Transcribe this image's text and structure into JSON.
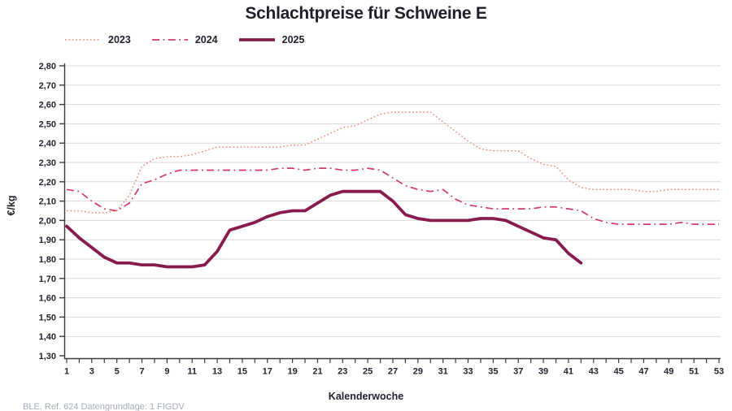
{
  "title": "Schlachtpreise für Schweine E",
  "footer": "BLE, Ref. 624 Datengrundlage: 1 FIGDV",
  "colors": {
    "grid": "#d9d9d9",
    "axis": "#3a3a3a",
    "text": "#23232f",
    "footer": "#a7acb8"
  },
  "chart_data": {
    "type": "line",
    "title": "Schlachtpreise für Schweine E",
    "xlabel": "Kalenderwoche",
    "ylabel": "€/kg",
    "xlim": [
      1,
      53
    ],
    "ylim": [
      1.3,
      2.8
    ],
    "ytick_step": 0.1,
    "xtick_labels": [
      1,
      3,
      5,
      7,
      9,
      11,
      13,
      15,
      17,
      19,
      21,
      23,
      25,
      27,
      29,
      31,
      33,
      35,
      37,
      39,
      41,
      43,
      45,
      47,
      49,
      51,
      53
    ],
    "grid": "horizontal",
    "legend_position": "top-left",
    "decimal_separator": ",",
    "series": [
      {
        "name": "2023",
        "color": "#ee8a7a",
        "dash": "dotted",
        "width": 1.4,
        "start_week": 1,
        "values": [
          2.05,
          2.05,
          2.04,
          2.04,
          2.05,
          2.13,
          2.28,
          2.32,
          2.33,
          2.33,
          2.34,
          2.36,
          2.38,
          2.38,
          2.38,
          2.38,
          2.38,
          2.38,
          2.39,
          2.39,
          2.42,
          2.45,
          2.48,
          2.49,
          2.52,
          2.55,
          2.56,
          2.56,
          2.56,
          2.56,
          2.51,
          2.46,
          2.41,
          2.37,
          2.36,
          2.36,
          2.36,
          2.32,
          2.29,
          2.28,
          2.21,
          2.17,
          2.16,
          2.16,
          2.16,
          2.16,
          2.15,
          2.15,
          2.16,
          2.16,
          2.16,
          2.16,
          2.16
        ]
      },
      {
        "name": "2024",
        "color": "#d2386c",
        "dash": "dashdot",
        "width": 1.7,
        "start_week": 1,
        "values": [
          2.16,
          2.15,
          2.1,
          2.06,
          2.05,
          2.09,
          2.19,
          2.21,
          2.24,
          2.26,
          2.26,
          2.26,
          2.26,
          2.26,
          2.26,
          2.26,
          2.26,
          2.27,
          2.27,
          2.26,
          2.27,
          2.27,
          2.26,
          2.26,
          2.27,
          2.26,
          2.22,
          2.18,
          2.16,
          2.15,
          2.16,
          2.11,
          2.08,
          2.07,
          2.06,
          2.06,
          2.06,
          2.06,
          2.07,
          2.07,
          2.06,
          2.05,
          2.01,
          1.99,
          1.98,
          1.98,
          1.98,
          1.98,
          1.98,
          1.99,
          1.98,
          1.98,
          1.98
        ]
      },
      {
        "name": "2025",
        "color": "#871b4e",
        "dash": "solid",
        "width": 3.8,
        "start_week": 1,
        "values": [
          1.97,
          1.91,
          1.86,
          1.81,
          1.78,
          1.78,
          1.77,
          1.77,
          1.76,
          1.76,
          1.76,
          1.77,
          1.84,
          1.95,
          1.97,
          1.99,
          2.02,
          2.04,
          2.05,
          2.05,
          2.09,
          2.13,
          2.15,
          2.15,
          2.15,
          2.15,
          2.1,
          2.03,
          2.01,
          2.0,
          2.0,
          2.0,
          2.0,
          2.01,
          2.01,
          2.0,
          1.97,
          1.94,
          1.91,
          1.9,
          1.83,
          1.78
        ]
      }
    ]
  }
}
